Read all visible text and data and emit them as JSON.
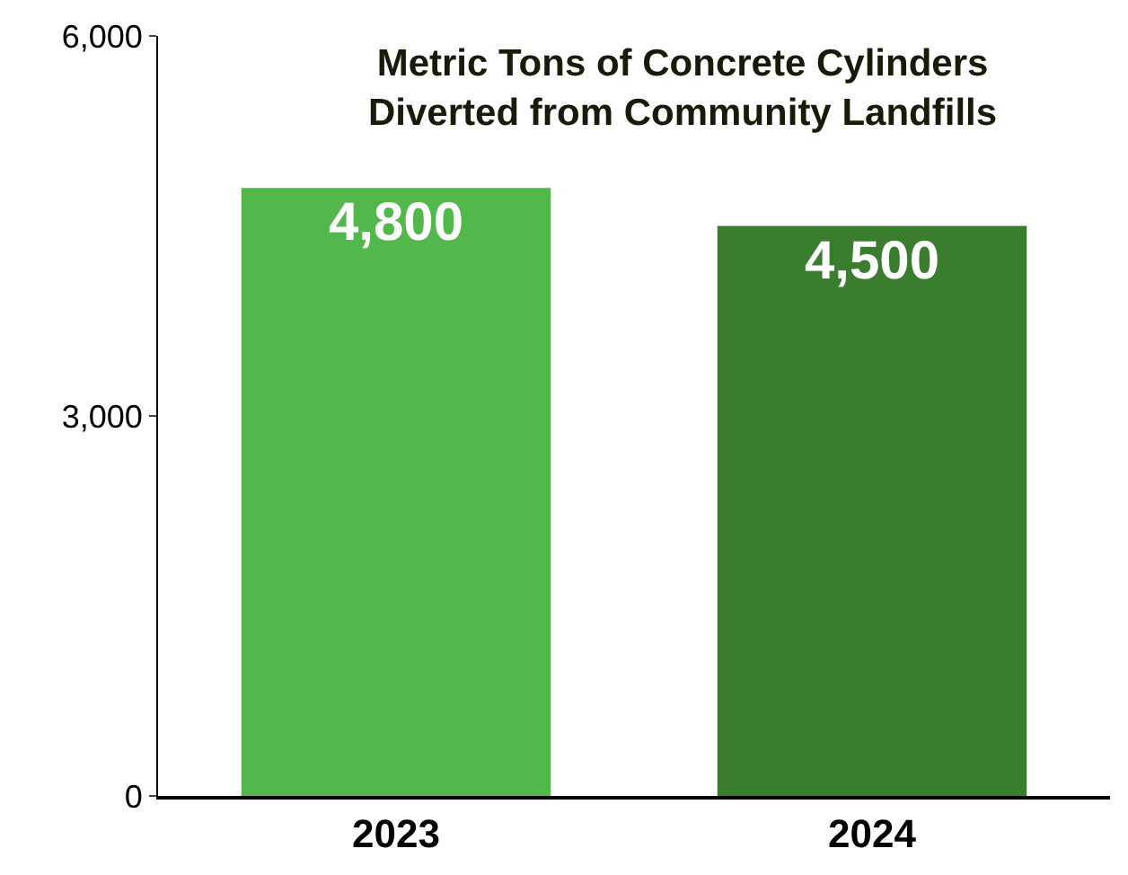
{
  "chart_data": {
    "type": "bar",
    "title": "Metric Tons of Concrete Cylinders\nDiverted from Community Landfills",
    "categories": [
      "2023",
      "2024"
    ],
    "values": [
      4800,
      4500
    ],
    "value_labels": [
      "4,800",
      "4,500"
    ],
    "colors": [
      "#52b84c",
      "#3a7d2e"
    ],
    "ylim": [
      0,
      6000
    ],
    "yticks": [
      0,
      {
        "value": 3000,
        "label": "3,000"
      },
      {
        "value": 6000,
        "label": "6,000"
      }
    ],
    "legend": false
  }
}
